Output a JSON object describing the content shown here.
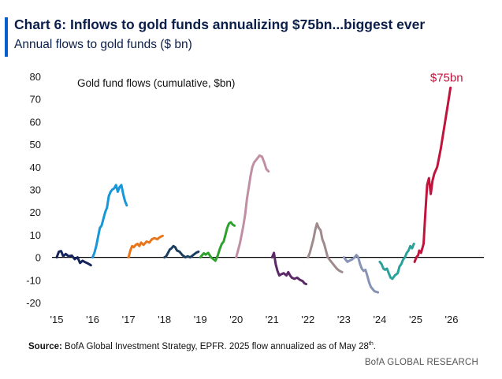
{
  "header": {
    "title": "Chart 6: Inflows to gold funds annualizing $75bn...biggest ever",
    "subtitle": "Annual flows to gold funds ($ bn)"
  },
  "footer": {
    "source_label": "Source:",
    "source_text": "BofA Global Investment Strategy, EPFR. 2025 flow annualized as of May 28",
    "source_sup": "th",
    "source_end": ".",
    "brand": "BofA GLOBAL RESEARCH"
  },
  "colors": {
    "accent": "#0a5ec9",
    "title": "#0b1f4a",
    "highlight": "#c0143c"
  },
  "chart_data": {
    "type": "line",
    "inner_label": "Gold fund flows (cumulative, $bn)",
    "annotation": {
      "text": "$75bn",
      "x": 2025.95,
      "y": 75
    },
    "xlabel": "",
    "ylabel": "",
    "xlim": [
      2015,
      2026.9
    ],
    "ylim": [
      -20,
      80
    ],
    "x_ticks": [
      {
        "v": 2015,
        "label": "'15"
      },
      {
        "v": 2016,
        "label": "'16"
      },
      {
        "v": 2017,
        "label": "'17"
      },
      {
        "v": 2018,
        "label": "'18"
      },
      {
        "v": 2019,
        "label": "'19"
      },
      {
        "v": 2020,
        "label": "'20"
      },
      {
        "v": 2021,
        "label": "'21"
      },
      {
        "v": 2022,
        "label": "'22"
      },
      {
        "v": 2023,
        "label": "'23"
      },
      {
        "v": 2024,
        "label": "'24"
      },
      {
        "v": 2025,
        "label": "'25"
      },
      {
        "v": 2026,
        "label": "'26"
      }
    ],
    "y_ticks": [
      80,
      70,
      60,
      50,
      40,
      30,
      20,
      10,
      0,
      -10,
      -20
    ],
    "grid": false,
    "zero_line": true,
    "series": [
      {
        "color": "#16245c",
        "points": [
          [
            2015.0,
            0
          ],
          [
            2015.06,
            2.5
          ],
          [
            2015.12,
            2.8
          ],
          [
            2015.18,
            0.5
          ],
          [
            2015.25,
            1.5
          ],
          [
            2015.33,
            0.5
          ],
          [
            2015.42,
            0.8
          ],
          [
            2015.5,
            -0.8
          ],
          [
            2015.58,
            0
          ],
          [
            2015.65,
            -2.5
          ],
          [
            2015.72,
            -1.5
          ],
          [
            2015.8,
            -2.2
          ],
          [
            2015.88,
            -2.8
          ],
          [
            2015.95,
            -3.5
          ]
        ]
      },
      {
        "color": "#1796d8",
        "points": [
          [
            2016.0,
            0
          ],
          [
            2016.05,
            2
          ],
          [
            2016.1,
            5
          ],
          [
            2016.15,
            9
          ],
          [
            2016.2,
            13
          ],
          [
            2016.25,
            14
          ],
          [
            2016.3,
            17
          ],
          [
            2016.35,
            20
          ],
          [
            2016.4,
            22
          ],
          [
            2016.45,
            27
          ],
          [
            2016.5,
            29
          ],
          [
            2016.55,
            30
          ],
          [
            2016.6,
            30.5
          ],
          [
            2016.65,
            32
          ],
          [
            2016.7,
            29
          ],
          [
            2016.75,
            31
          ],
          [
            2016.8,
            32
          ],
          [
            2016.85,
            28
          ],
          [
            2016.9,
            25
          ],
          [
            2016.95,
            23
          ]
        ]
      },
      {
        "color": "#e8751a",
        "points": [
          [
            2017.0,
            0
          ],
          [
            2017.05,
            3
          ],
          [
            2017.1,
            5
          ],
          [
            2017.15,
            4.5
          ],
          [
            2017.2,
            5.5
          ],
          [
            2017.25,
            6
          ],
          [
            2017.3,
            5
          ],
          [
            2017.35,
            6.5
          ],
          [
            2017.42,
            5.5
          ],
          [
            2017.5,
            7
          ],
          [
            2017.58,
            6.5
          ],
          [
            2017.65,
            8
          ],
          [
            2017.72,
            8.5
          ],
          [
            2017.8,
            8
          ],
          [
            2017.88,
            9
          ],
          [
            2017.95,
            9.5
          ]
        ]
      },
      {
        "color": "#1b3d5e",
        "points": [
          [
            2018.0,
            0
          ],
          [
            2018.05,
            0.5
          ],
          [
            2018.1,
            2
          ],
          [
            2018.15,
            3.5
          ],
          [
            2018.2,
            4
          ],
          [
            2018.25,
            5
          ],
          [
            2018.3,
            4.5
          ],
          [
            2018.35,
            3
          ],
          [
            2018.42,
            2.5
          ],
          [
            2018.5,
            1
          ],
          [
            2018.58,
            0
          ],
          [
            2018.65,
            0.5
          ],
          [
            2018.72,
            0
          ],
          [
            2018.8,
            1
          ],
          [
            2018.88,
            2
          ],
          [
            2018.95,
            2.5
          ]
        ]
      },
      {
        "color": "#2ea02c",
        "points": [
          [
            2019.0,
            0
          ],
          [
            2019.05,
            1
          ],
          [
            2019.1,
            1.8
          ],
          [
            2019.15,
            1.2
          ],
          [
            2019.22,
            2
          ],
          [
            2019.3,
            0
          ],
          [
            2019.38,
            -1
          ],
          [
            2019.42,
            -1.5
          ],
          [
            2019.48,
            0.5
          ],
          [
            2019.55,
            4
          ],
          [
            2019.6,
            6
          ],
          [
            2019.65,
            7
          ],
          [
            2019.7,
            10
          ],
          [
            2019.75,
            13
          ],
          [
            2019.8,
            15
          ],
          [
            2019.85,
            15.5
          ],
          [
            2019.9,
            14.5
          ],
          [
            2019.95,
            14
          ]
        ]
      },
      {
        "color": "#c08fa4",
        "points": [
          [
            2020.0,
            0
          ],
          [
            2020.05,
            3
          ],
          [
            2020.1,
            6
          ],
          [
            2020.15,
            10
          ],
          [
            2020.2,
            14
          ],
          [
            2020.25,
            19
          ],
          [
            2020.3,
            26
          ],
          [
            2020.35,
            31
          ],
          [
            2020.4,
            36
          ],
          [
            2020.45,
            40
          ],
          [
            2020.5,
            42
          ],
          [
            2020.55,
            43
          ],
          [
            2020.6,
            44
          ],
          [
            2020.65,
            45
          ],
          [
            2020.72,
            44.5
          ],
          [
            2020.78,
            42
          ],
          [
            2020.84,
            39
          ],
          [
            2020.9,
            38
          ]
        ]
      },
      {
        "color": "#5b2868",
        "points": [
          [
            2021.0,
            0
          ],
          [
            2021.05,
            2
          ],
          [
            2021.1,
            -3
          ],
          [
            2021.15,
            -6
          ],
          [
            2021.2,
            -8
          ],
          [
            2021.25,
            -7.5
          ],
          [
            2021.32,
            -7
          ],
          [
            2021.4,
            -8
          ],
          [
            2021.45,
            -6.5
          ],
          [
            2021.5,
            -8
          ],
          [
            2021.55,
            -9
          ],
          [
            2021.62,
            -9.5
          ],
          [
            2021.7,
            -9
          ],
          [
            2021.78,
            -10
          ],
          [
            2021.85,
            -10.5
          ],
          [
            2021.9,
            -11.5
          ],
          [
            2021.95,
            -11.8
          ]
        ]
      },
      {
        "color": "#9f8a8d",
        "points": [
          [
            2022.0,
            0
          ],
          [
            2022.05,
            2
          ],
          [
            2022.1,
            5
          ],
          [
            2022.15,
            8
          ],
          [
            2022.2,
            12
          ],
          [
            2022.25,
            15
          ],
          [
            2022.3,
            13
          ],
          [
            2022.35,
            12
          ],
          [
            2022.4,
            8
          ],
          [
            2022.45,
            6
          ],
          [
            2022.5,
            3
          ],
          [
            2022.55,
            0
          ],
          [
            2022.6,
            -1
          ],
          [
            2022.7,
            -3
          ],
          [
            2022.8,
            -5
          ],
          [
            2022.88,
            -6
          ],
          [
            2022.95,
            -6.5
          ]
        ]
      },
      {
        "color": "#8793b5",
        "points": [
          [
            2023.0,
            0
          ],
          [
            2023.05,
            -1
          ],
          [
            2023.1,
            -2
          ],
          [
            2023.15,
            -1.5
          ],
          [
            2023.22,
            -1
          ],
          [
            2023.3,
            0
          ],
          [
            2023.35,
            1
          ],
          [
            2023.4,
            0
          ],
          [
            2023.45,
            -3
          ],
          [
            2023.5,
            -5
          ],
          [
            2023.55,
            -6
          ],
          [
            2023.6,
            -5.5
          ],
          [
            2023.65,
            -8
          ],
          [
            2023.7,
            -11
          ],
          [
            2023.75,
            -13
          ],
          [
            2023.8,
            -14
          ],
          [
            2023.85,
            -15
          ],
          [
            2023.95,
            -15.5
          ]
        ]
      },
      {
        "color": "#2aa19a",
        "points": [
          [
            2024.0,
            -2
          ],
          [
            2024.05,
            -3
          ],
          [
            2024.1,
            -5
          ],
          [
            2024.15,
            -5.5
          ],
          [
            2024.2,
            -5
          ],
          [
            2024.25,
            -7
          ],
          [
            2024.3,
            -9
          ],
          [
            2024.35,
            -9.5
          ],
          [
            2024.42,
            -8
          ],
          [
            2024.5,
            -7
          ],
          [
            2024.55,
            -4
          ],
          [
            2024.6,
            -3
          ],
          [
            2024.65,
            -1
          ],
          [
            2024.7,
            0
          ],
          [
            2024.75,
            2
          ],
          [
            2024.8,
            3
          ],
          [
            2024.85,
            5
          ],
          [
            2024.9,
            4
          ],
          [
            2024.95,
            6
          ]
        ]
      },
      {
        "color": "#c0143c",
        "points": [
          [
            2024.97,
            -2
          ],
          [
            2025.02,
            0
          ],
          [
            2025.07,
            1
          ],
          [
            2025.1,
            3
          ],
          [
            2025.15,
            2
          ],
          [
            2025.22,
            6
          ],
          [
            2025.27,
            20
          ],
          [
            2025.32,
            32
          ],
          [
            2025.37,
            35
          ],
          [
            2025.42,
            28
          ],
          [
            2025.47,
            34
          ],
          [
            2025.52,
            37
          ],
          [
            2025.6,
            40
          ],
          [
            2025.7,
            48
          ],
          [
            2025.8,
            58
          ],
          [
            2025.9,
            68
          ],
          [
            2025.97,
            75
          ]
        ]
      }
    ]
  }
}
